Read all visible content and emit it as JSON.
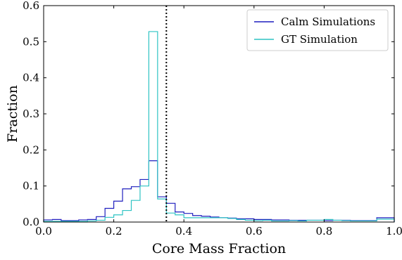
{
  "chart_data": {
    "type": "histogram",
    "xlabel": "Core Mass Fraction",
    "ylabel": "Fraction",
    "xlim": [
      0.0,
      1.0
    ],
    "ylim": [
      0.0,
      0.6
    ],
    "x_ticks": [
      "0.0",
      "0.2",
      "0.4",
      "0.6",
      "0.8",
      "1.0"
    ],
    "y_ticks": [
      "0.0",
      "0.1",
      "0.2",
      "0.3",
      "0.4",
      "0.5",
      "0.6"
    ],
    "bin_edges": [
      0.0,
      0.025,
      0.05,
      0.075,
      0.1,
      0.125,
      0.15,
      0.175,
      0.2,
      0.225,
      0.25,
      0.275,
      0.3,
      0.325,
      0.35,
      0.375,
      0.4,
      0.425,
      0.45,
      0.475,
      0.5,
      0.525,
      0.55,
      0.575,
      0.6,
      0.625,
      0.65,
      0.675,
      0.7,
      0.725,
      0.75,
      0.775,
      0.8,
      0.825,
      0.85,
      0.875,
      0.9,
      0.925,
      0.95,
      0.975,
      1.0
    ],
    "series": [
      {
        "name": "Calm Simulations",
        "color": "#1f1fbf",
        "values": [
          0.006,
          0.007,
          0.004,
          0.004,
          0.006,
          0.007,
          0.015,
          0.038,
          0.058,
          0.092,
          0.098,
          0.118,
          0.17,
          0.07,
          0.052,
          0.028,
          0.024,
          0.018,
          0.016,
          0.014,
          0.012,
          0.011,
          0.009,
          0.009,
          0.007,
          0.007,
          0.006,
          0.006,
          0.005,
          0.005,
          0.005,
          0.005,
          0.004,
          0.005,
          0.005,
          0.004,
          0.004,
          0.004,
          0.012,
          0.012
        ]
      },
      {
        "name": "GT Simulation",
        "color": "#2fc4c4",
        "values": [
          0.002,
          0.002,
          0.002,
          0.002,
          0.002,
          0.003,
          0.005,
          0.013,
          0.02,
          0.032,
          0.06,
          0.1,
          0.528,
          0.064,
          0.025,
          0.02,
          0.012,
          0.012,
          0.012,
          0.012,
          0.012,
          0.01,
          0.007,
          0.005,
          0.004,
          0.005,
          0.003,
          0.003,
          0.004,
          0.003,
          0.005,
          0.005,
          0.007,
          0.005,
          0.004,
          0.003,
          0.003,
          0.003,
          0.008,
          0.008
        ]
      }
    ],
    "vline": {
      "x": 0.35,
      "style": "dotted",
      "color": "#000000"
    },
    "legend": {
      "position": "top-right"
    },
    "grid": false
  }
}
